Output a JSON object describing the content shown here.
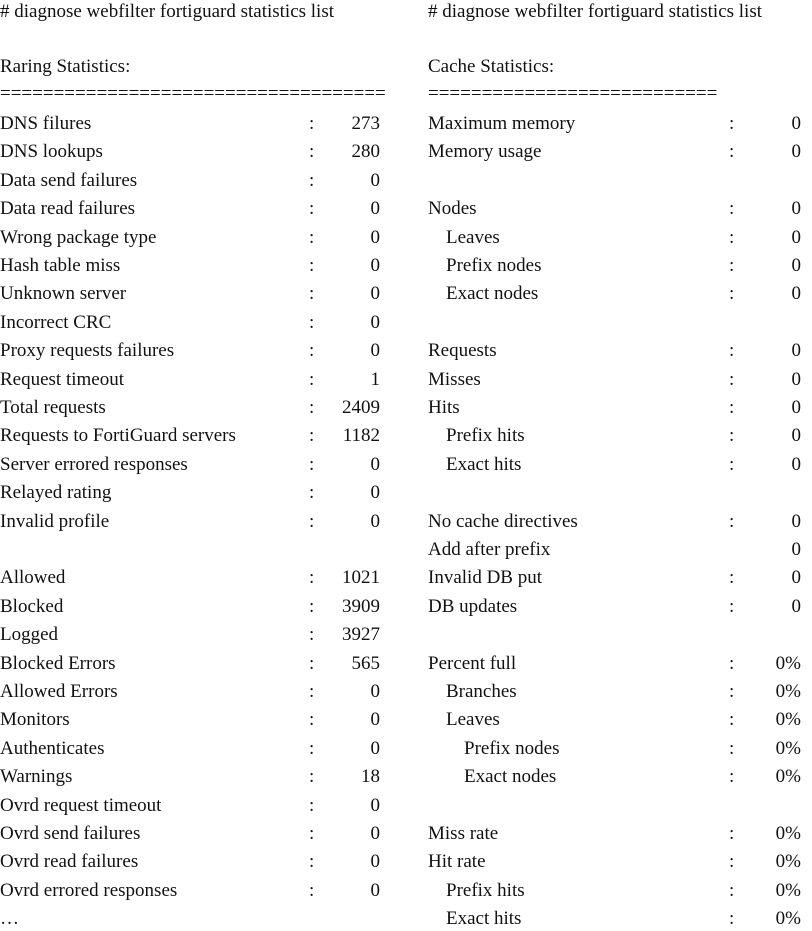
{
  "columns": [
    {
      "command": "# diagnose webfilter fortiguard statistics list",
      "title": "Raring Statistics:",
      "rule": "====================================",
      "rows": [
        {
          "label": "DNS filures",
          "separator": ":",
          "value": "273",
          "level": 0
        },
        {
          "label": "DNS lookups",
          "separator": ":",
          "value": "280",
          "level": 0
        },
        {
          "label": "Data send failures",
          "separator": ":",
          "value": "0",
          "level": 0
        },
        {
          "label": "Data read failures",
          "separator": ":",
          "value": "0",
          "level": 0
        },
        {
          "label": "Wrong package type",
          "separator": ":",
          "value": "0",
          "level": 0
        },
        {
          "label": "Hash table miss",
          "separator": ":",
          "value": "0",
          "level": 0
        },
        {
          "label": "Unknown server",
          "separator": ":",
          "value": "0",
          "level": 0
        },
        {
          "label": "Incorrect CRC",
          "separator": ":",
          "value": "0",
          "level": 0
        },
        {
          "label": "Proxy requests failures",
          "separator": ":",
          "value": "0",
          "level": 0
        },
        {
          "label": "Request timeout",
          "separator": ":",
          "value": "1",
          "level": 0
        },
        {
          "label": "Total requests",
          "separator": ":",
          "value": "2409",
          "level": 0
        },
        {
          "label": "Requests to FortiGuard servers",
          "separator": ":",
          "value": "1182",
          "level": 0
        },
        {
          "label": "Server errored responses",
          "separator": ":",
          "value": "0",
          "level": 0
        },
        {
          "label": "Relayed rating",
          "separator": ":",
          "value": "0",
          "level": 0
        },
        {
          "label": "Invalid profile",
          "separator": ":",
          "value": "0",
          "level": 0
        },
        null,
        {
          "label": "Allowed",
          "separator": ":",
          "value": "1021",
          "level": 0
        },
        {
          "label": "Blocked",
          "separator": ":",
          "value": "3909",
          "level": 0
        },
        {
          "label": "Logged",
          "separator": ":",
          "value": "3927",
          "level": 0
        },
        {
          "label": "Blocked Errors",
          "separator": ":",
          "value": "565",
          "level": 0
        },
        {
          "label": "Allowed Errors",
          "separator": ":",
          "value": "0",
          "level": 0
        },
        {
          "label": "Monitors",
          "separator": ":",
          "value": "0",
          "level": 0
        },
        {
          "label": "Authenticates",
          "separator": ":",
          "value": "0",
          "level": 0
        },
        {
          "label": "Warnings",
          "separator": ":",
          "value": "18",
          "level": 0
        },
        {
          "label": "Ovrd request timeout",
          "separator": ":",
          "value": "0",
          "level": 0
        },
        {
          "label": "Ovrd send failures",
          "separator": ":",
          "value": "0",
          "level": 0
        },
        {
          "label": "Ovrd read failures",
          "separator": ":",
          "value": "0",
          "level": 0
        },
        {
          "label": "Ovrd errored responses",
          "separator": ":",
          "value": "0",
          "level": 0
        },
        {
          "label": "…",
          "level": 0
        }
      ]
    },
    {
      "command": "# diagnose webfilter fortiguard statistics list",
      "title": "Cache Statistics:",
      "rule": "===========================",
      "rows": [
        {
          "label": "Maximum memory",
          "separator": ":",
          "value": "0",
          "level": 0
        },
        {
          "label": "Memory usage",
          "separator": ":",
          "value": "0",
          "level": 0
        },
        null,
        {
          "label": "Nodes",
          "separator": ":",
          "value": "0",
          "level": 0
        },
        {
          "label": "Leaves",
          "separator": ":",
          "value": "0",
          "level": 1
        },
        {
          "label": "Prefix nodes",
          "separator": ":",
          "value": "0",
          "level": 1
        },
        {
          "label": "Exact nodes",
          "separator": ":",
          "value": "0",
          "level": 1
        },
        null,
        {
          "label": "Requests",
          "separator": ":",
          "value": "0",
          "level": 0
        },
        {
          "label": "Misses",
          "separator": ":",
          "value": "0",
          "level": 0
        },
        {
          "label": "Hits",
          "separator": ":",
          "value": "0",
          "level": 0
        },
        {
          "label": "Prefix hits",
          "separator": ":",
          "value": "0",
          "level": 1
        },
        {
          "label": "Exact hits",
          "separator": ":",
          "value": "0",
          "level": 1
        },
        null,
        {
          "label": "No cache directives",
          "separator": ":",
          "value": "0",
          "level": 0
        },
        {
          "label": "Add after prefix",
          "value": "0",
          "level": 0
        },
        {
          "label": "Invalid DB put",
          "separator": ":",
          "value": "0",
          "level": 0
        },
        {
          "label": "DB updates",
          "separator": ":",
          "value": "0",
          "level": 0
        },
        null,
        {
          "label": "Percent full",
          "separator": ":",
          "value": "0%",
          "level": 0
        },
        {
          "label": "Branches",
          "separator": ":",
          "value": "0%",
          "level": 1
        },
        {
          "label": "Leaves",
          "separator": ":",
          "value": "0%",
          "level": 1
        },
        {
          "label": "Prefix nodes",
          "separator": ":",
          "value": "0%",
          "level": 2
        },
        {
          "label": "Exact nodes",
          "separator": ":",
          "value": "0%",
          "level": 2
        },
        null,
        {
          "label": "Miss rate",
          "separator": ":",
          "value": "0%",
          "level": 0
        },
        {
          "label": "Hit rate",
          "separator": ":",
          "value": "0%",
          "level": 0
        },
        {
          "label": "Prefix hits",
          "separator": ":",
          "value": "0%",
          "level": 1
        },
        {
          "label": "Exact hits",
          "separator": ":",
          "value": "0%",
          "level": 1
        }
      ]
    }
  ]
}
